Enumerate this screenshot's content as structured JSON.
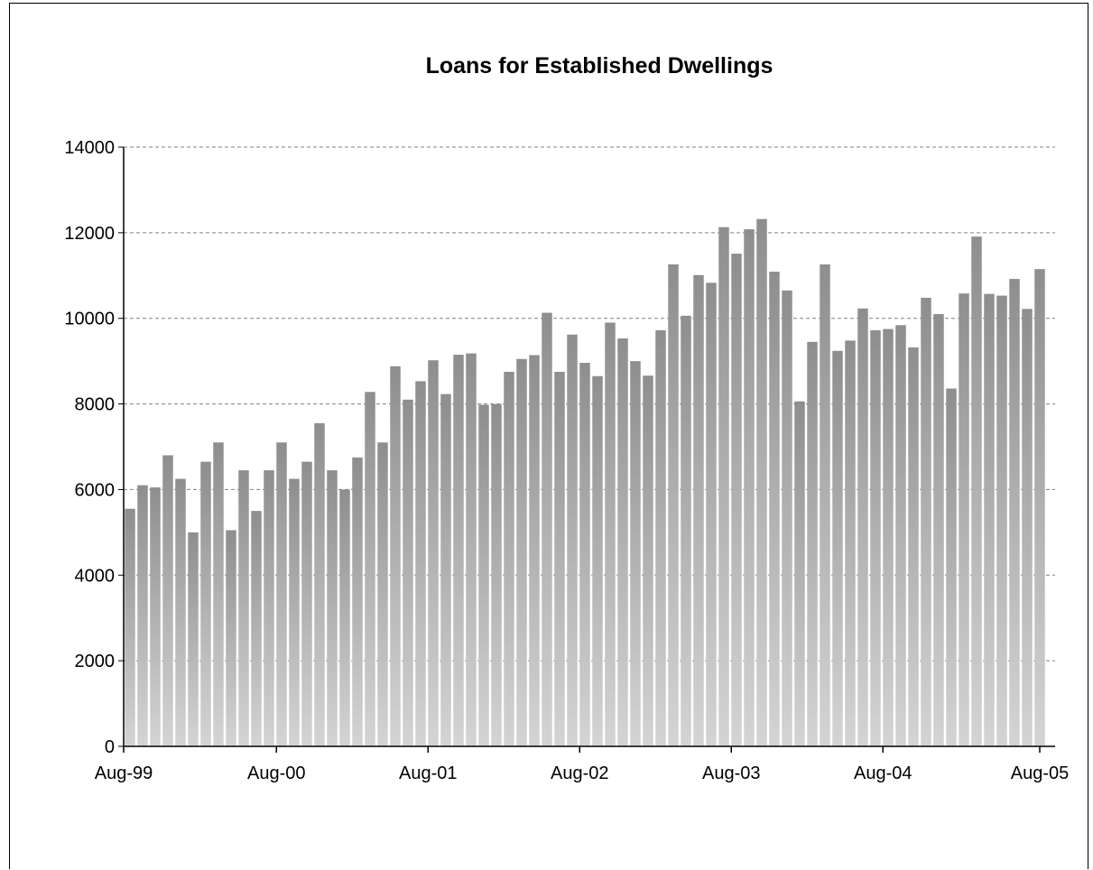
{
  "chart_data": {
    "type": "bar",
    "title": "Loans for Established Dwellings",
    "xlabel": "",
    "ylabel": "",
    "ylim": [
      0,
      14000
    ],
    "y_ticks": [
      "0",
      "2000",
      "4000",
      "6000",
      "8000",
      "10000",
      "12000",
      "14000"
    ],
    "x_tick_labels": [
      "Aug-99",
      "Aug-00",
      "Aug-01",
      "Aug-02",
      "Aug-03",
      "Aug-04",
      "Aug-05"
    ],
    "x_tick_every": 12,
    "grid": "horizontal dashed",
    "legend": "none",
    "colors": {
      "bar_top": "#8e8e8e",
      "bar_bottom": "#d4d4d4",
      "gridline": "#808080",
      "axis": "#000000"
    },
    "categories": [
      "Aug-99",
      "Sep-99",
      "Oct-99",
      "Nov-99",
      "Dec-99",
      "Jan-00",
      "Feb-00",
      "Mar-00",
      "Apr-00",
      "May-00",
      "Jun-00",
      "Jul-00",
      "Aug-00",
      "Sep-00",
      "Oct-00",
      "Nov-00",
      "Dec-00",
      "Jan-01",
      "Feb-01",
      "Mar-01",
      "Apr-01",
      "May-01",
      "Jun-01",
      "Jul-01",
      "Aug-01",
      "Sep-01",
      "Oct-01",
      "Nov-01",
      "Dec-01",
      "Jan-02",
      "Feb-02",
      "Mar-02",
      "Apr-02",
      "May-02",
      "Jun-02",
      "Jul-02",
      "Aug-02",
      "Sep-02",
      "Oct-02",
      "Nov-02",
      "Dec-02",
      "Jan-03",
      "Feb-03",
      "Mar-03",
      "Apr-03",
      "May-03",
      "Jun-03",
      "Jul-03",
      "Aug-03",
      "Sep-03",
      "Oct-03",
      "Nov-03",
      "Dec-03",
      "Jan-04",
      "Feb-04",
      "Mar-04",
      "Apr-04",
      "May-04",
      "Jun-04",
      "Jul-04",
      "Aug-04",
      "Sep-04",
      "Oct-04",
      "Nov-04",
      "Dec-04",
      "Jan-05",
      "Feb-05",
      "Mar-05",
      "Apr-05",
      "May-05",
      "Jun-05",
      "Jul-05",
      "Aug-05"
    ],
    "values": [
      5550,
      6100,
      6050,
      6800,
      6250,
      5000,
      6650,
      7100,
      5050,
      6450,
      5500,
      6450,
      7100,
      6250,
      6650,
      7550,
      6450,
      6000,
      6750,
      8280,
      7100,
      8880,
      8100,
      8530,
      9020,
      8230,
      9150,
      9180,
      7980,
      8000,
      8750,
      9050,
      9140,
      10130,
      8750,
      9620,
      8960,
      8650,
      9900,
      9530,
      9000,
      8660,
      9720,
      11260,
      10060,
      11010,
      10830,
      12130,
      11510,
      12080,
      12320,
      11090,
      10650,
      8060,
      9450,
      11260,
      9240,
      9480,
      10230,
      9720,
      9750,
      9840,
      9320,
      10480,
      10100,
      8360,
      10580,
      11910,
      10570,
      10530,
      10920,
      10220,
      11150
    ]
  }
}
